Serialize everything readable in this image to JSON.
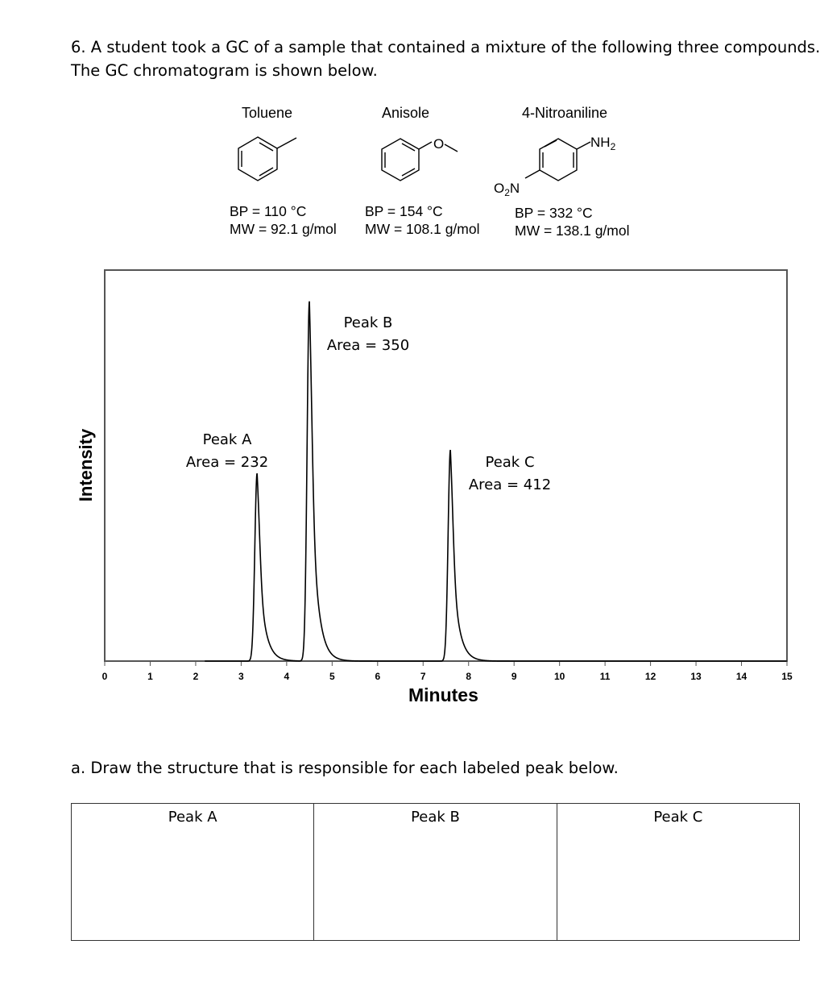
{
  "question": {
    "line1": "6. A student took a GC of a sample that contained a mixture of the following three compounds.",
    "line2": "The GC chromatogram is shown below."
  },
  "compounds": [
    {
      "name": "Toluene",
      "bp": "BP = 110 °C",
      "mw": "MW = 92.1 g/mol"
    },
    {
      "name": "Anisole",
      "bp": "BP = 154 °C",
      "mw": "MW = 108.1 g/mol",
      "atom_label": "O"
    },
    {
      "name": "4-Nitroaniline",
      "bp": "BP = 332 °C",
      "mw": "MW = 138.1 g/mol",
      "group_top": "NH",
      "group_top_sub": "2",
      "group_left": "O",
      "group_left_sub": "2",
      "group_left_end": "N"
    }
  ],
  "chart_data": {
    "type": "line",
    "xlabel": "Minutes",
    "ylabel": "Intensity",
    "xlim": [
      0,
      15
    ],
    "ylim": [
      0,
      1
    ],
    "x_ticks": [
      0,
      1,
      2,
      3,
      4,
      5,
      6,
      7,
      8,
      9,
      10,
      11,
      12,
      13,
      14,
      15
    ],
    "grid": false,
    "peaks": [
      {
        "label": "Peak A",
        "area_text": "Area = 232",
        "time": 3.35,
        "height": 0.48
      },
      {
        "label": "Peak B",
        "area_text": "Area = 350",
        "time": 4.5,
        "height": 0.92
      },
      {
        "label": "Peak C",
        "area_text": "Area = 412",
        "time": 7.6,
        "height": 0.54
      }
    ]
  },
  "part_a": {
    "prompt": "a. Draw the structure that is responsible for each labeled peak below.",
    "columns": [
      "Peak A",
      "Peak B",
      "Peak C"
    ]
  }
}
